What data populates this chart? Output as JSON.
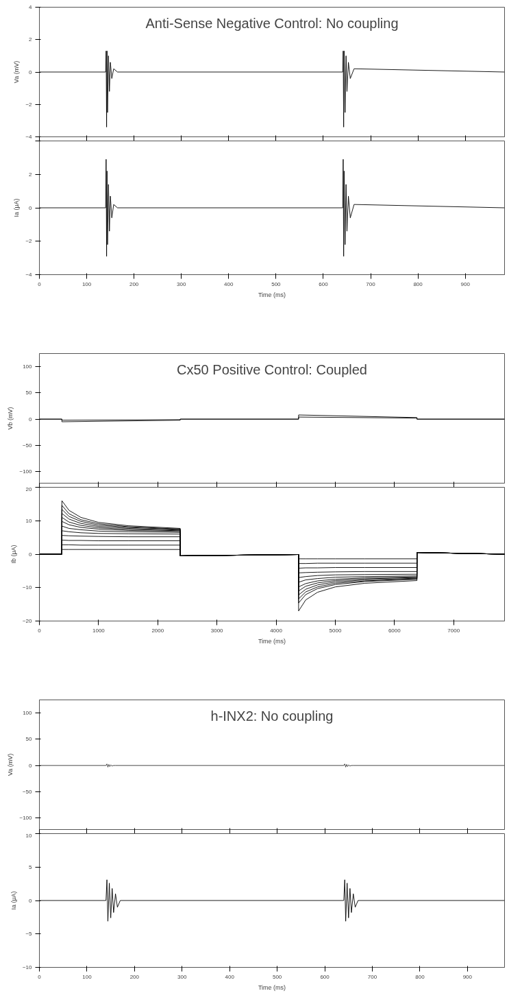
{
  "chart_data": [
    {
      "type": "line",
      "title": "Anti-Sense Negative Control: No coupling",
      "ylabel": "Va (mV)",
      "xlim": [
        0,
        983
      ],
      "xticks": [
        0,
        100,
        200,
        300,
        400,
        500,
        600,
        700,
        800,
        900
      ],
      "ylim": [
        -4,
        4
      ],
      "yticks": [
        -4,
        -2,
        0,
        2,
        4
      ],
      "tick_labels": "y",
      "grid": false,
      "series": [
        {
          "color": "#000000",
          "x": [
            0,
            140,
            141,
            142,
            143,
            144,
            146,
            148,
            150,
            153,
            157,
            165,
            640,
            641,
            642,
            643,
            644,
            646,
            648,
            650,
            653,
            657,
            665,
            983
          ],
          "values": [
            0,
            0,
            1.3,
            -3.4,
            1.3,
            -2.5,
            1.0,
            -1.2,
            0.6,
            -0.4,
            0.2,
            0,
            0,
            0,
            1.3,
            -3.4,
            1.3,
            -2.5,
            1.0,
            -1.2,
            0.6,
            -0.4,
            0.2,
            0
          ]
        }
      ]
    },
    {
      "type": "line",
      "ylabel": "Ia (μA)",
      "xlabel": "Time (ms)",
      "xlim": [
        0,
        983
      ],
      "xticks": [
        0,
        100,
        200,
        300,
        400,
        500,
        600,
        700,
        800,
        900
      ],
      "ylim": [
        -4,
        4
      ],
      "yticks": [
        -4,
        -2,
        0,
        2,
        {
          "value": 4,
          "label": null
        }
      ],
      "grid": false,
      "series": [
        {
          "color": "#000000",
          "x": [
            0,
            140,
            141,
            142,
            143,
            144,
            146,
            148,
            150,
            153,
            157,
            165,
            640,
            641,
            642,
            643,
            644,
            646,
            648,
            650,
            653,
            657,
            665,
            983
          ],
          "values": [
            0,
            0,
            2.9,
            -2.9,
            2.2,
            -2.2,
            1.4,
            -1.4,
            0.7,
            -0.6,
            0.2,
            0,
            0,
            0,
            2.9,
            -2.9,
            2.2,
            -2.2,
            1.4,
            -1.4,
            0.7,
            -0.6,
            0.2,
            0
          ]
        }
      ]
    },
    {
      "type": "line",
      "title": "Cx50 Positive Control: Coupled",
      "ylabel": "Vb (mV)",
      "xlim": [
        0,
        7860
      ],
      "xticks": [
        0,
        1000,
        2000,
        3000,
        4000,
        5000,
        6000,
        7000
      ],
      "ylim": [
        -122,
        125
      ],
      "yticks": [
        -100,
        -50,
        0,
        50,
        100
      ],
      "tick_labels": "y",
      "grid": false,
      "series": [
        {
          "color": "#000000",
          "x": [
            0,
            380,
            380,
            2380,
            2380,
            4380,
            4380,
            6380,
            6380,
            7860
          ],
          "values": [
            0,
            0,
            -5,
            -2,
            0,
            0,
            8,
            3,
            0,
            0
          ]
        },
        {
          "color": "#000000",
          "x": [
            0,
            380,
            380,
            2380,
            2380,
            4380,
            4380,
            6380,
            6380,
            7860
          ],
          "values": [
            0,
            0,
            -2,
            -1,
            0,
            0,
            4,
            2,
            0,
            0
          ]
        }
      ]
    },
    {
      "type": "line",
      "ylabel": "Ib (μA)",
      "xlabel": "Time (ms)",
      "xlim": [
        0,
        7860
      ],
      "xticks": [
        0,
        1000,
        2000,
        3000,
        4000,
        5000,
        6000,
        7000
      ],
      "ylim": [
        -20,
        20
      ],
      "yticks": [
        -20,
        -10,
        0,
        10,
        20
      ],
      "grid": false,
      "series": [
        {
          "color": "#000000",
          "x": [
            0,
            380,
            380,
            500,
            700,
            1000,
            1500,
            2380,
            2380,
            4380,
            4380,
            4500,
            4700,
            5000,
            5500,
            6380,
            6380,
            7860
          ],
          "values": [
            0,
            0,
            1.4,
            1.4,
            1.4,
            1.4,
            1.4,
            1.4,
            -0.5,
            -0.1,
            -1.4,
            -1.4,
            -1.4,
            -1.4,
            -1.4,
            -1.4,
            0.5,
            0
          ]
        },
        {
          "color": "#000000",
          "x": [
            0,
            380,
            380,
            500,
            700,
            1000,
            1500,
            2380,
            2380,
            4380,
            4380,
            4500,
            4700,
            5000,
            5500,
            6380,
            6380,
            7860
          ],
          "values": [
            0,
            0,
            2.8,
            2.8,
            2.7,
            2.7,
            2.7,
            2.7,
            -0.5,
            -0.1,
            -2.8,
            -2.8,
            -2.7,
            -2.7,
            -2.7,
            -2.7,
            0.5,
            0
          ]
        },
        {
          "color": "#000000",
          "x": [
            0,
            380,
            380,
            500,
            700,
            1000,
            1500,
            2380,
            2380,
            4380,
            4380,
            4500,
            4700,
            5000,
            5500,
            6380,
            6380,
            7860
          ],
          "values": [
            0,
            0,
            4.2,
            4.1,
            4.1,
            4.0,
            4.0,
            4.0,
            -0.5,
            -0.1,
            -4.2,
            -4.1,
            -4.1,
            -4.0,
            -4.0,
            -4.0,
            0.5,
            0
          ]
        },
        {
          "color": "#000000",
          "x": [
            0,
            380,
            380,
            500,
            700,
            1000,
            1500,
            2380,
            2380,
            4380,
            4380,
            4500,
            4700,
            5000,
            5500,
            6380,
            6380,
            7860
          ],
          "values": [
            0,
            0,
            5.6,
            5.5,
            5.4,
            5.3,
            5.2,
            5.2,
            -0.5,
            -0.1,
            -5.6,
            -5.5,
            -5.4,
            -5.3,
            -5.2,
            -5.2,
            0.5,
            0
          ]
        },
        {
          "color": "#000000",
          "x": [
            0,
            380,
            380,
            500,
            700,
            1000,
            1500,
            2380,
            2380,
            4380,
            4380,
            4500,
            4700,
            5000,
            5500,
            6380,
            6380,
            7860
          ],
          "values": [
            0,
            0,
            7.0,
            6.7,
            6.4,
            6.2,
            6.1,
            6.0,
            -0.5,
            -0.1,
            -7.0,
            -6.7,
            -6.4,
            -6.2,
            -6.1,
            -6.0,
            0.5,
            0
          ]
        },
        {
          "color": "#000000",
          "x": [
            0,
            380,
            380,
            500,
            700,
            1000,
            1500,
            2380,
            2380,
            4380,
            4380,
            4500,
            4700,
            5000,
            5500,
            6380,
            6380,
            7860
          ],
          "values": [
            0,
            0,
            8.4,
            7.7,
            7.3,
            6.9,
            6.7,
            6.5,
            -0.5,
            -0.1,
            -8.4,
            -7.7,
            -7.3,
            -6.9,
            -6.7,
            -6.5,
            0.5,
            0
          ]
        },
        {
          "color": "#000000",
          "x": [
            0,
            380,
            380,
            500,
            700,
            1000,
            1500,
            2380,
            2380,
            4380,
            4380,
            4500,
            4700,
            5000,
            5500,
            6380,
            6380,
            7860
          ],
          "values": [
            0,
            0,
            9.8,
            8.8,
            8.0,
            7.5,
            7.1,
            6.8,
            -0.5,
            -0.1,
            -9.8,
            -8.8,
            -8.0,
            -7.5,
            -7.1,
            -6.8,
            0.5,
            0
          ]
        },
        {
          "color": "#000000",
          "x": [
            0,
            380,
            380,
            500,
            700,
            1000,
            1500,
            2380,
            2380,
            4380,
            4380,
            4500,
            4700,
            5000,
            5500,
            6380,
            6380,
            7860
          ],
          "values": [
            0,
            0,
            11.0,
            9.6,
            8.6,
            7.9,
            7.4,
            7.0,
            -0.5,
            -0.1,
            -11.0,
            -9.6,
            -8.6,
            -7.9,
            -7.4,
            -7.0,
            0.5,
            0
          ]
        },
        {
          "color": "#000000",
          "x": [
            0,
            380,
            380,
            500,
            700,
            1000,
            1500,
            2380,
            2380,
            4380,
            4380,
            4500,
            4700,
            5000,
            5500,
            6380,
            6380,
            7860
          ],
          "values": [
            0,
            0,
            12.2,
            10.5,
            9.2,
            8.3,
            7.7,
            7.2,
            -0.5,
            -0.1,
            -12.2,
            -10.5,
            -9.2,
            -8.3,
            -7.7,
            -7.2,
            0.5,
            0
          ]
        },
        {
          "color": "#000000",
          "x": [
            0,
            380,
            380,
            500,
            700,
            1000,
            1500,
            2380,
            2380,
            4380,
            4380,
            4500,
            4700,
            5000,
            5500,
            6380,
            6380,
            7860
          ],
          "values": [
            0,
            0,
            13.4,
            11.3,
            9.8,
            8.7,
            8.0,
            7.4,
            -0.5,
            -0.1,
            -13.4,
            -11.3,
            -9.8,
            -8.7,
            -8.0,
            -7.4,
            0.5,
            0
          ]
        },
        {
          "color": "#000000",
          "x": [
            0,
            380,
            380,
            500,
            700,
            1000,
            1500,
            2380,
            2380,
            4380,
            4380,
            4500,
            4700,
            5000,
            5500,
            6380,
            6380,
            7860
          ],
          "values": [
            0,
            0,
            14.6,
            12.1,
            10.3,
            9.1,
            8.2,
            7.5,
            -0.5,
            -0.1,
            -14.6,
            -12.1,
            -10.3,
            -9.1,
            -8.2,
            -7.5,
            0.5,
            0
          ]
        },
        {
          "color": "#000000",
          "x": [
            0,
            380,
            380,
            500,
            700,
            1000,
            1500,
            2380,
            2380,
            4380,
            4380,
            4500,
            4700,
            5000,
            5500,
            6380,
            6380,
            7860
          ],
          "values": [
            0,
            0,
            16.0,
            13.1,
            11.0,
            9.5,
            8.5,
            7.7,
            -0.5,
            -0.1,
            -17.0,
            -13.7,
            -11.4,
            -9.8,
            -8.7,
            -7.9,
            0.5,
            0
          ]
        }
      ]
    },
    {
      "type": "line",
      "title": "h-INX2: No coupling",
      "ylabel": "Va (mV)",
      "xlim": [
        0,
        978
      ],
      "xticks": [
        0,
        100,
        200,
        300,
        400,
        500,
        600,
        700,
        800,
        900
      ],
      "ylim": [
        -122,
        125
      ],
      "yticks": [
        -100,
        -50,
        0,
        50,
        100
      ],
      "tick_labels": "y",
      "grid": false,
      "series": [
        {
          "color": "#333333",
          "x": [
            0,
            140,
            142,
            144,
            146,
            148,
            150,
            153,
            156,
            160,
            640,
            642,
            644,
            646,
            648,
            650,
            653,
            656,
            660,
            978
          ],
          "values": [
            0,
            0,
            3,
            -3,
            2,
            -2,
            1,
            -1,
            0,
            0,
            0,
            3,
            -3,
            2,
            -2,
            1,
            -1,
            0,
            0,
            0
          ]
        }
      ]
    },
    {
      "type": "line",
      "ylabel": "Ia (μA)",
      "xlabel": "Time (ms)",
      "xlim": [
        0,
        978
      ],
      "xticks": [
        0,
        100,
        200,
        300,
        400,
        500,
        600,
        700,
        800,
        900
      ],
      "ylim": [
        -10,
        10
      ],
      "yticks": [
        -10,
        -5,
        0,
        5,
        10
      ],
      "grid": false,
      "series": [
        {
          "color": "#000000",
          "x": [
            0,
            140,
            142,
            144,
            147,
            150,
            153,
            156,
            160,
            164,
            170,
            640,
            642,
            644,
            647,
            650,
            653,
            656,
            660,
            664,
            670,
            978
          ],
          "values": [
            0,
            0,
            3.1,
            -3.1,
            2.6,
            -2.6,
            1.8,
            -1.8,
            1.0,
            -1.0,
            0,
            0,
            3.1,
            -3.1,
            2.6,
            -2.6,
            1.8,
            -1.8,
            1.0,
            -1.0,
            0,
            0
          ]
        }
      ]
    }
  ]
}
